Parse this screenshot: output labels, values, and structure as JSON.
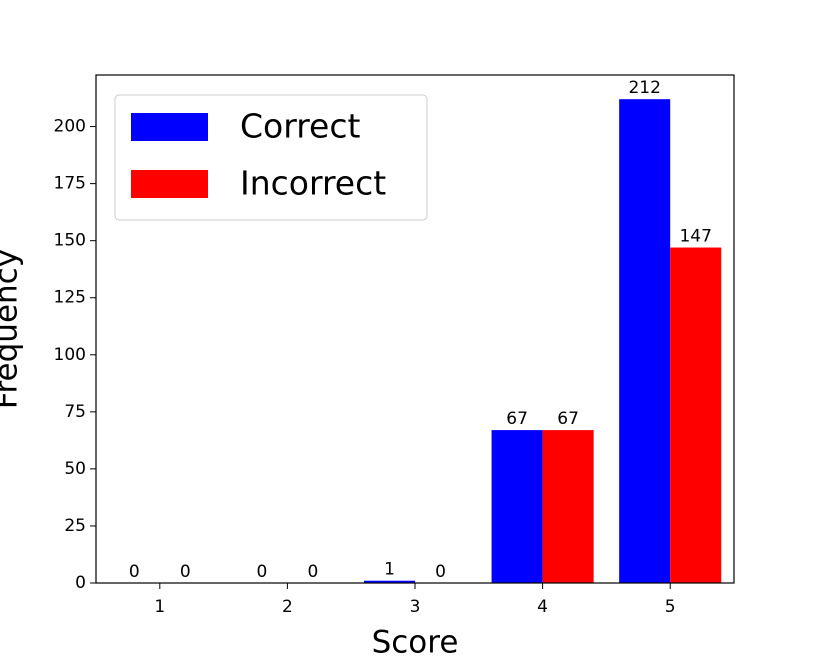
{
  "chart_data": {
    "type": "bar",
    "xlabel": "Score",
    "ylabel": "Frequency",
    "categories": [
      "1",
      "2",
      "3",
      "4",
      "5"
    ],
    "series": [
      {
        "name": "Correct",
        "color": "#0000ff",
        "values": [
          0,
          0,
          1,
          67,
          212
        ]
      },
      {
        "name": "Incorrect",
        "color": "#ff0000",
        "values": [
          0,
          0,
          0,
          67,
          147
        ]
      }
    ],
    "ylim": [
      0,
      222.6
    ],
    "yticks": [
      0,
      25,
      50,
      75,
      100,
      125,
      150,
      175,
      200
    ],
    "legend": "upper left"
  }
}
